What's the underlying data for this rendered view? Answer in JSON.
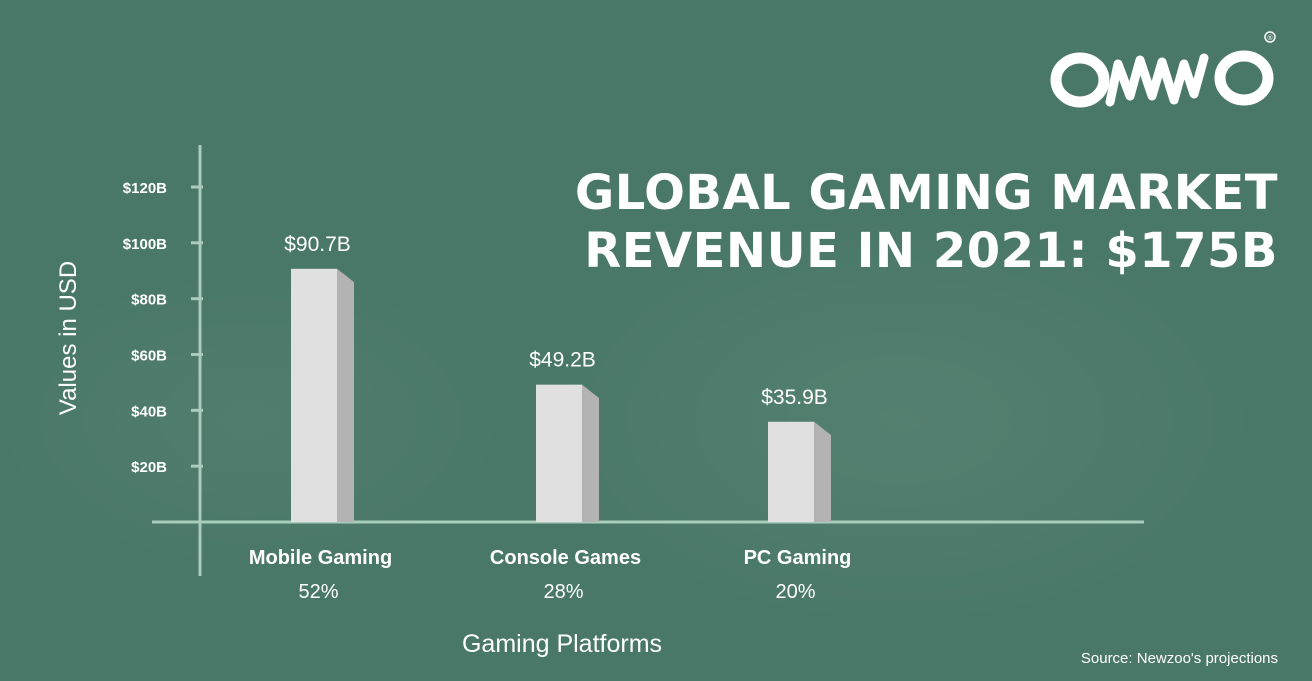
{
  "brand": {
    "logo_text": "omo",
    "registered_mark": "®"
  },
  "title": {
    "line1": "GLOBAL GAMING MARKET",
    "line2": "REVENUE IN 2021: $175B"
  },
  "source": "Source: Newzoo's projections",
  "colors": {
    "background": "#4a7868",
    "axis": "#a9ccbd",
    "bar_front": "#e0e0e0",
    "bar_side": "#b3b3b3",
    "text": "#ffffff"
  },
  "chart_data": {
    "type": "bar",
    "categories": [
      "Mobile Gaming",
      "Console Games",
      "PC Gaming"
    ],
    "shares": [
      "52%",
      "28%",
      "20%"
    ],
    "values": [
      90.7,
      49.2,
      35.9
    ],
    "data_labels": [
      "$90.7B",
      "$49.2B",
      "$35.9B"
    ],
    "yticks": [
      20,
      40,
      60,
      80,
      100,
      120
    ],
    "ytick_labels": [
      "$20B",
      "$40B",
      "$60B",
      "$80B",
      "$100B",
      "$120B"
    ],
    "ylim": [
      0,
      120
    ],
    "xlabel": "Gaming Platforms",
    "ylabel": "Values in USD",
    "grid": false,
    "unit": "billion USD"
  }
}
